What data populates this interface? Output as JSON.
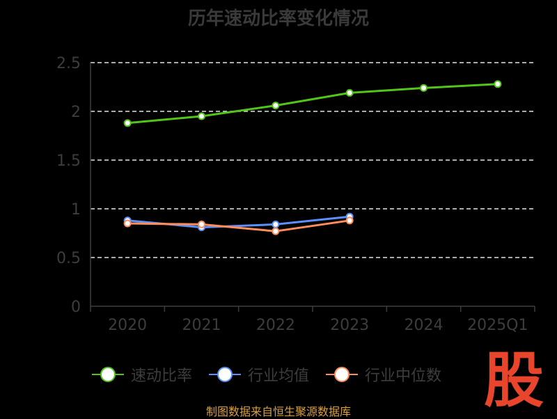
{
  "chart_data": {
    "type": "line",
    "title": "历年速动比率变化情况",
    "categories": [
      "2020",
      "2021",
      "2022",
      "2023",
      "2024",
      "2025Q1"
    ],
    "y_ticks": [
      "0",
      "0.5",
      "1",
      "1.5",
      "2",
      "2.5"
    ],
    "ylim": [
      0,
      2.5
    ],
    "grid": true,
    "legend_position": "bottom",
    "series": [
      {
        "name": "速动比率",
        "color": "#52c41a",
        "values": [
          1.88,
          1.95,
          2.06,
          2.19,
          2.24,
          2.28
        ]
      },
      {
        "name": "行业均值",
        "color": "#5b8ff9",
        "values": [
          0.88,
          0.81,
          0.84,
          0.92,
          null,
          null
        ]
      },
      {
        "name": "行业中位数",
        "color": "#ff8c5a",
        "values": [
          0.85,
          0.84,
          0.77,
          0.88,
          null,
          null
        ]
      }
    ]
  },
  "footer": {
    "source": "制图数据来自恒生聚源数据库"
  },
  "logo": {
    "text": "股",
    "color": "#e8452c"
  }
}
